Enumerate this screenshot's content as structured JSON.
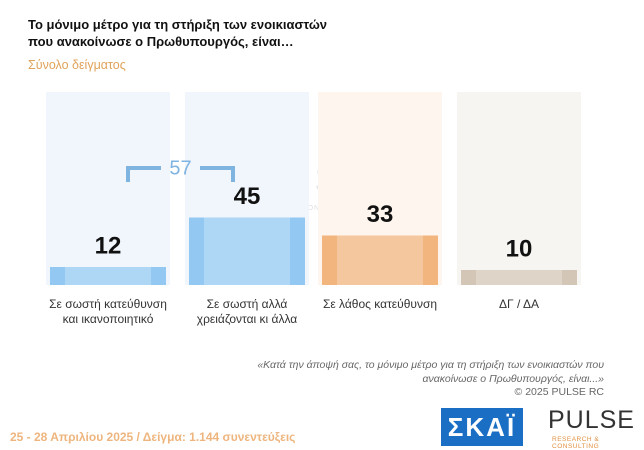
{
  "chart_data": {
    "type": "bar",
    "title": "Το μόνιμο μέτρο για τη στήριξη των ενοικιαστών που ανακοίνωσε ο Πρωθυπουργός, είναι…",
    "subtitle": "Σύνολο δείγματος",
    "categories": [
      "Σε σωστή κατεύθυνση και ικανοποιητικό",
      "Σε σωστή αλλά χρειάζονται κι άλλα",
      "Σε λάθος κατεύθυνση",
      "ΔΓ / ΔΑ"
    ],
    "values": [
      12,
      45,
      33,
      10
    ],
    "colors": [
      "#93c8f2",
      "#93c8f2",
      "#f2b57e",
      "#d3c6b6"
    ],
    "bracket_total": 57,
    "bracket_color": "#7fb3e0",
    "note": "«Κατά την άποψή σας, το μόνιμο μέτρο για τη στήριξη των ενοικιαστών που ανακοίνωσε ο Πρωθυπουργός, είναι...»",
    "copyright": "© 2025 PULSE RC",
    "watermark": "PULSE",
    "watermark_sub": "RESEARCH & CONSULTING",
    "footer": "25 - 28 Απριλίου 2025 / Δείγμα: 1.144 συνεντεύξεις",
    "logo_skai": "ΣΚΑΪ",
    "logo_pulse": "PULSE",
    "logo_pulse_sub": "RESEARCH & CONSULTING"
  }
}
